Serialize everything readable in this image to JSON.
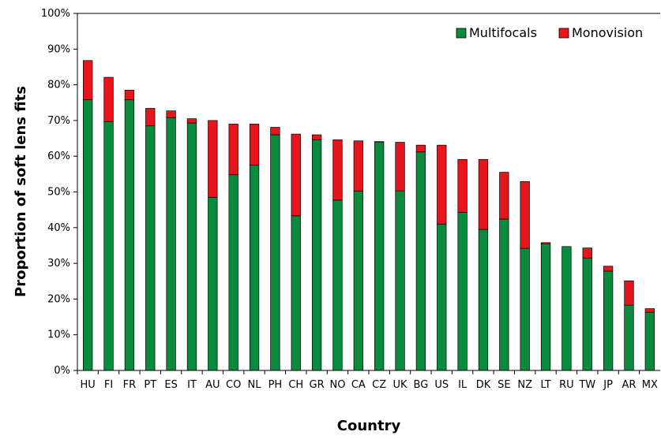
{
  "chart_data": {
    "type": "bar",
    "stacked": true,
    "title": "",
    "xlabel": "Country",
    "ylabel": "Proportion of soft lens fits",
    "ylim": [
      0,
      100
    ],
    "y_tick_format": "percent",
    "y_ticks": [
      "0%",
      "10%",
      "20%",
      "30%",
      "40%",
      "50%",
      "60%",
      "70%",
      "80%",
      "90%",
      "100%"
    ],
    "legend_position": "top-right",
    "categories": [
      "HU",
      "FI",
      "FR",
      "PT",
      "ES",
      "IT",
      "AU",
      "CO",
      "NL",
      "PH",
      "CH",
      "GR",
      "NO",
      "CA",
      "CZ",
      "UK",
      "BG",
      "US",
      "IL",
      "DK",
      "SE",
      "NZ",
      "LT",
      "RU",
      "TW",
      "JP",
      "AR",
      "MX"
    ],
    "series": [
      {
        "name": "Multifocals",
        "color": "#0a8a3c",
        "values": [
          75.8,
          69.7,
          75.8,
          68.5,
          70.8,
          69.3,
          48.5,
          54.8,
          57.5,
          66.0,
          43.3,
          64.6,
          47.7,
          50.2,
          64.0,
          50.3,
          61.2,
          41.0,
          44.3,
          39.5,
          42.4,
          34.2,
          35.5,
          34.7,
          31.5,
          27.8,
          18.3,
          16.3
        ]
      },
      {
        "name": "Monovision",
        "color": "#e8141b",
        "values": [
          11.0,
          12.4,
          2.7,
          4.9,
          1.9,
          1.2,
          21.5,
          14.2,
          11.5,
          2.1,
          22.9,
          1.4,
          16.9,
          14.1,
          0.1,
          13.6,
          1.9,
          22.1,
          14.8,
          19.6,
          13.1,
          18.7,
          0.3,
          0.0,
          2.8,
          1.4,
          6.8,
          1.0
        ]
      }
    ]
  }
}
